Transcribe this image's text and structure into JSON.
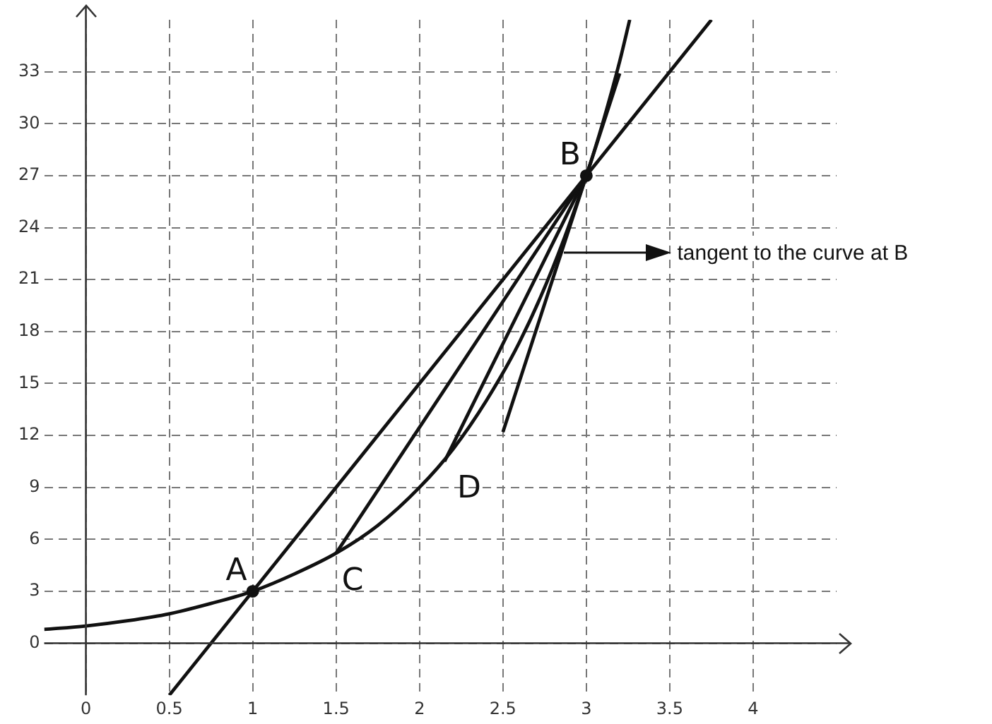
{
  "chart_data": {
    "type": "line",
    "xlim": [
      -0.25,
      4.5
    ],
    "xticks": [
      0,
      0.5,
      1,
      1.5,
      2,
      2.5,
      3,
      3.5,
      4
    ],
    "ylim": [
      -3,
      36
    ],
    "yticks": [
      0,
      3,
      6,
      9,
      12,
      15,
      18,
      21,
      24,
      27,
      30,
      33
    ],
    "grid": true,
    "legend": false,
    "marker": "none",
    "line_style": "solid",
    "series": [
      {
        "color": "#111111",
        "x": [
          -0.25,
          0,
          0.25,
          0.5,
          0.75,
          1,
          1.25,
          1.5,
          1.75,
          2,
          2.2,
          2.4,
          2.6,
          2.8,
          3,
          3.1,
          3.2,
          3.26
        ],
        "values": [
          0.8,
          1,
          1.3,
          1.7,
          2.3,
          3,
          4,
          5.2,
          6.8,
          9,
          11.2,
          14,
          17.4,
          21.7,
          27,
          30.1,
          33.6,
          36
        ]
      },
      {
        "color": "#111111",
        "x": [
          0.5,
          3.75
        ],
        "values": [
          -3,
          36
        ]
      },
      {
        "color": "#111111",
        "x": [
          1.5,
          3
        ],
        "values": [
          5.2,
          27
        ]
      },
      {
        "color": "#111111",
        "x": [
          2.15,
          3
        ],
        "values": [
          10.5,
          27
        ]
      },
      {
        "color": "#111111",
        "x": [
          2.5,
          3.2
        ],
        "values": [
          12.2,
          32.9
        ]
      },
      {
        "type": "scatter",
        "marker": "circle",
        "color": "#111111",
        "x": [
          1,
          3
        ],
        "values": [
          3,
          27
        ]
      }
    ],
    "annotations": [
      {
        "text": "A",
        "x": 1,
        "y": 3
      },
      {
        "text": "B",
        "x": 3,
        "y": 27
      },
      {
        "text": "C",
        "x": 1.5,
        "y": 5.2
      },
      {
        "text": "D",
        "x": 2.2,
        "y": 11.2
      },
      "tangent to the curve at B"
    ]
  }
}
